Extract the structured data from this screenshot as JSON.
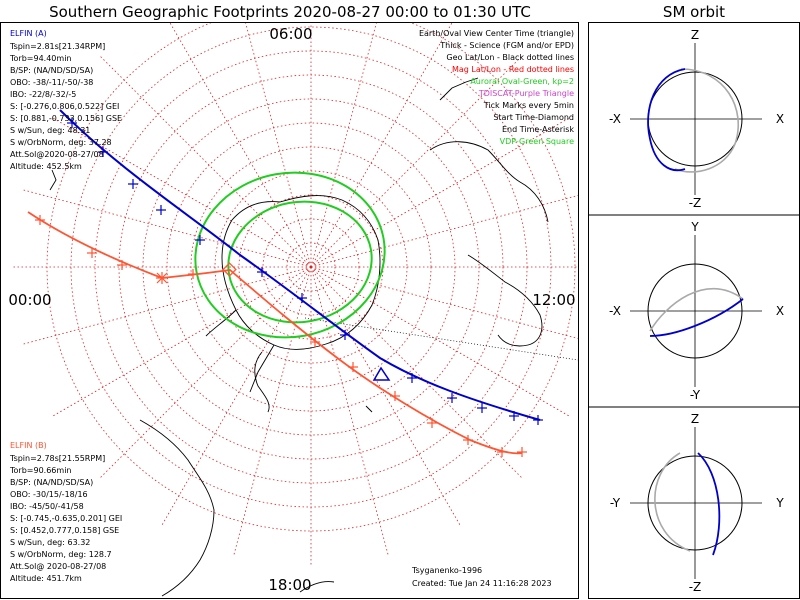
{
  "title": "Southern Geographic Footprints 2020-08-27 00:00 to 01:30 UTC",
  "sm_title": "SM orbit",
  "clock_labels": {
    "top": "06:00",
    "left": "00:00",
    "right": "12:00",
    "bottom": "18:00"
  },
  "legend": [
    {
      "text": "Earth/Oval View Center Time (triangle)",
      "color": "#000000"
    },
    {
      "text": "Thick - Science (FGM and/or EPD)",
      "color": "#000000"
    },
    {
      "text": "Geo Lat/Lon - Black dotted lines",
      "color": "#000000"
    },
    {
      "text": "Mag Lat/Lon - Red dotted lines",
      "color": "#ff0000"
    },
    {
      "text": "Auroral Oval-Green, kp=2",
      "color": "#22cc22"
    },
    {
      "text": "TDISCAT-Purple Triangle",
      "color": "#cc44cc"
    },
    {
      "text": "Tick Marks every 5min",
      "color": "#000000"
    },
    {
      "text": "Start Time-Diamond",
      "color": "#000000"
    },
    {
      "text": "End Time-Asterisk",
      "color": "#000000"
    },
    {
      "text": "VDP-Green Square",
      "color": "#22cc22"
    }
  ],
  "elfin_a": {
    "header": "ELFIN (A)",
    "color": "#0000cc",
    "lines": [
      "Tspin=2.81s[21.34RPM]",
      "Torb=94.40min",
      "B/SP: (NA/ND/SD/SA)",
      "OBO: -38/-11/-50/-38",
      "IBO: -22/8/-32/-5",
      "S: [-0.276,0.806,0.522] GEI",
      "S: [0.881,-0.733,0.156] GSE",
      "S w/Sun, deg: 48.31",
      "S w/OrbNorm, deg: 37.28",
      "Att.Sol@2020-08-27/08",
      "Altitude: 452.5km"
    ]
  },
  "elfin_b": {
    "header": "ELFIN (B)",
    "color": "#ff5533",
    "lines": [
      "Tspin=2.78s[21.55RPM]",
      "Torb=90.66min",
      "B/SP: (NA/ND/SD/SA)",
      "OBO: -30/15/-18/16",
      "IBO: -45/50/-41/58",
      "S: [-0.745,-0.635,0.201] GEI",
      "S: [0.452,0.777,0.158] GSE",
      "S w/Sun, deg: 63.32",
      "S w/OrbNorm, deg: 128.7",
      "Att.Sol@ 2020-08-27/08",
      "Altitude: 451.7km"
    ]
  },
  "credits": {
    "author": "Tsyganenko-1996",
    "created": "Created: Tue Jan 24 11:16:28 2023"
  },
  "sm_panels": [
    {
      "top": "Z",
      "bottom": "-Z",
      "left": "-X",
      "right": "X"
    },
    {
      "top": "Y",
      "bottom": "-Y",
      "left": "-X",
      "right": "X"
    },
    {
      "top": "Z",
      "bottom": "-Z",
      "left": "-Y",
      "right": "Y"
    }
  ],
  "colors": {
    "elfin_a": "#0000cc",
    "elfin_b": "#ff5533",
    "oval": "#22cc22",
    "mag_grid": "#dd2222"
  },
  "chart_data": {
    "type": "scatter",
    "projection": "south polar geographic",
    "series": [
      {
        "name": "ELFIN (A)",
        "values": []
      },
      {
        "name": "ELFIN (B)",
        "values": []
      }
    ]
  }
}
